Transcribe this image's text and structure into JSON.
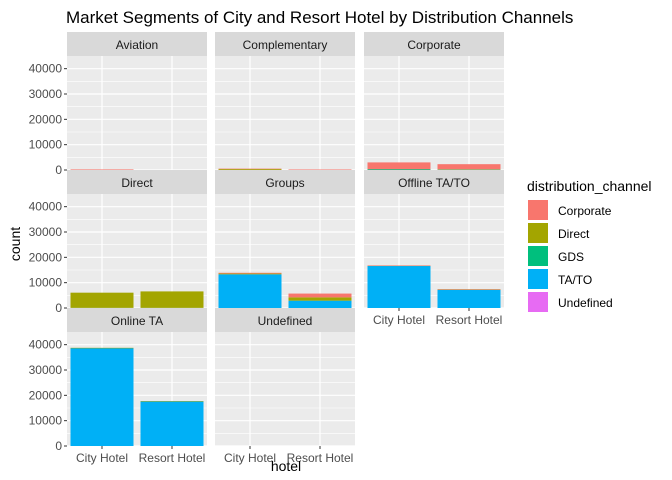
{
  "chart_data": {
    "type": "bar",
    "stacked": true,
    "faceted": true,
    "title": "Market Segments of City and Resort Hotel by Distribution Channels",
    "xlabel": "hotel",
    "ylabel": "count",
    "ylim": [
      0,
      45000
    ],
    "yticks": [
      0,
      10000,
      20000,
      30000,
      40000
    ],
    "ytick_labels": [
      "0",
      "10000",
      "20000",
      "30000",
      "40000"
    ],
    "categories": [
      "City Hotel",
      "Resort Hotel"
    ],
    "grid": true,
    "legend": {
      "title": "distribution_channel",
      "position": "right",
      "entries": [
        {
          "name": "Corporate",
          "color": "#F8766D"
        },
        {
          "name": "Direct",
          "color": "#A3A500"
        },
        {
          "name": "GDS",
          "color": "#00BF7D"
        },
        {
          "name": "TA/TO",
          "color": "#00B0F6"
        },
        {
          "name": "Undefined",
          "color": "#E76BF3"
        }
      ]
    },
    "facets": [
      {
        "name": "Aviation",
        "bars": [
          {
            "category": "City Hotel",
            "segments": [
              {
                "channel": "Corporate",
                "value": 220
              }
            ]
          },
          {
            "category": "Resort Hotel",
            "segments": []
          }
        ]
      },
      {
        "name": "Complementary",
        "bars": [
          {
            "category": "City Hotel",
            "segments": [
              {
                "channel": "Corporate",
                "value": 100
              },
              {
                "channel": "Direct",
                "value": 400
              },
              {
                "channel": "TA/TO",
                "value": 30
              }
            ]
          },
          {
            "category": "Resort Hotel",
            "segments": [
              {
                "channel": "Corporate",
                "value": 50
              },
              {
                "channel": "Direct",
                "value": 150
              }
            ]
          }
        ]
      },
      {
        "name": "Corporate",
        "bars": [
          {
            "category": "City Hotel",
            "segments": [
              {
                "channel": "Corporate",
                "value": 2600
              },
              {
                "channel": "Direct",
                "value": 100
              },
              {
                "channel": "TA/TO",
                "value": 300
              }
            ]
          },
          {
            "category": "Resort Hotel",
            "segments": [
              {
                "channel": "Corporate",
                "value": 2000
              },
              {
                "channel": "Direct",
                "value": 150
              },
              {
                "channel": "TA/TO",
                "value": 150
              }
            ]
          }
        ]
      },
      {
        "name": "Direct",
        "bars": [
          {
            "category": "City Hotel",
            "segments": [
              {
                "channel": "Direct",
                "value": 6000
              },
              {
                "channel": "TA/TO",
                "value": 50
              }
            ]
          },
          {
            "category": "Resort Hotel",
            "segments": [
              {
                "channel": "Direct",
                "value": 6500
              },
              {
                "channel": "TA/TO",
                "value": 50
              }
            ]
          }
        ]
      },
      {
        "name": "Groups",
        "bars": [
          {
            "category": "City Hotel",
            "segments": [
              {
                "channel": "Corporate",
                "value": 300
              },
              {
                "channel": "Direct",
                "value": 300
              },
              {
                "channel": "TA/TO",
                "value": 13300
              }
            ]
          },
          {
            "category": "Resort Hotel",
            "segments": [
              {
                "channel": "Corporate",
                "value": 1500
              },
              {
                "channel": "Direct",
                "value": 1300
              },
              {
                "channel": "TA/TO",
                "value": 2900
              }
            ]
          }
        ]
      },
      {
        "name": "Offline TA/TO",
        "bars": [
          {
            "category": "City Hotel",
            "segments": [
              {
                "channel": "Corporate",
                "value": 50
              },
              {
                "channel": "Direct",
                "value": 50
              },
              {
                "channel": "TA/TO",
                "value": 16700
              }
            ]
          },
          {
            "category": "Resort Hotel",
            "segments": [
              {
                "channel": "Corporate",
                "value": 50
              },
              {
                "channel": "Direct",
                "value": 50
              },
              {
                "channel": "TA/TO",
                "value": 7300
              }
            ]
          }
        ]
      },
      {
        "name": "Online TA",
        "bars": [
          {
            "category": "City Hotel",
            "segments": [
              {
                "channel": "Direct",
                "value": 50
              },
              {
                "channel": "TA/TO",
                "value": 38700
              }
            ]
          },
          {
            "category": "Resort Hotel",
            "segments": [
              {
                "channel": "Direct",
                "value": 50
              },
              {
                "channel": "TA/TO",
                "value": 17650
              }
            ]
          }
        ]
      },
      {
        "name": "Undefined",
        "bars": [
          {
            "category": "City Hotel",
            "segments": []
          },
          {
            "category": "Resort Hotel",
            "segments": []
          }
        ]
      }
    ]
  }
}
